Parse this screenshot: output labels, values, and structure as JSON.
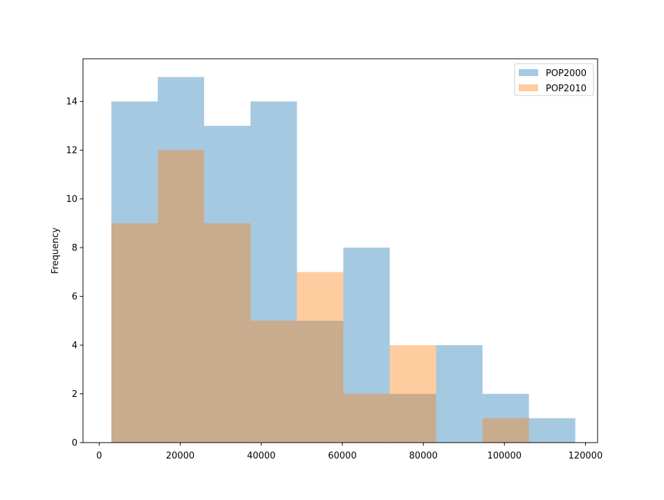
{
  "chart_data": {
    "type": "histogram",
    "title": "",
    "xlabel": "",
    "ylabel": "Frequency",
    "xlim": [
      -4000,
      123000
    ],
    "ylim": [
      0,
      15.75
    ],
    "xticks": [
      0,
      20000,
      40000,
      60000,
      80000,
      100000,
      120000
    ],
    "xtick_labels": [
      "0",
      "20000",
      "40000",
      "60000",
      "80000",
      "100000",
      "120000"
    ],
    "yticks": [
      0,
      2,
      4,
      6,
      8,
      10,
      12,
      14
    ],
    "ytick_labels": [
      "0",
      "2",
      "4",
      "6",
      "8",
      "10",
      "12",
      "14"
    ],
    "grid": false,
    "legend_position": "upper right",
    "bin_edges": [
      3000,
      14450,
      25900,
      37350,
      48800,
      60250,
      71700,
      83150,
      94600,
      106050,
      117500
    ],
    "series": [
      {
        "name": "POP2000",
        "color": "#1f77b4",
        "alpha": 0.4,
        "counts": [
          14,
          15,
          13,
          14,
          5,
          8,
          2,
          4,
          2,
          1
        ]
      },
      {
        "name": "POP2010",
        "color": "#ff7f0e",
        "alpha": 0.4,
        "counts": [
          9,
          12,
          9,
          5,
          7,
          2,
          4,
          0,
          1,
          0
        ]
      }
    ]
  }
}
